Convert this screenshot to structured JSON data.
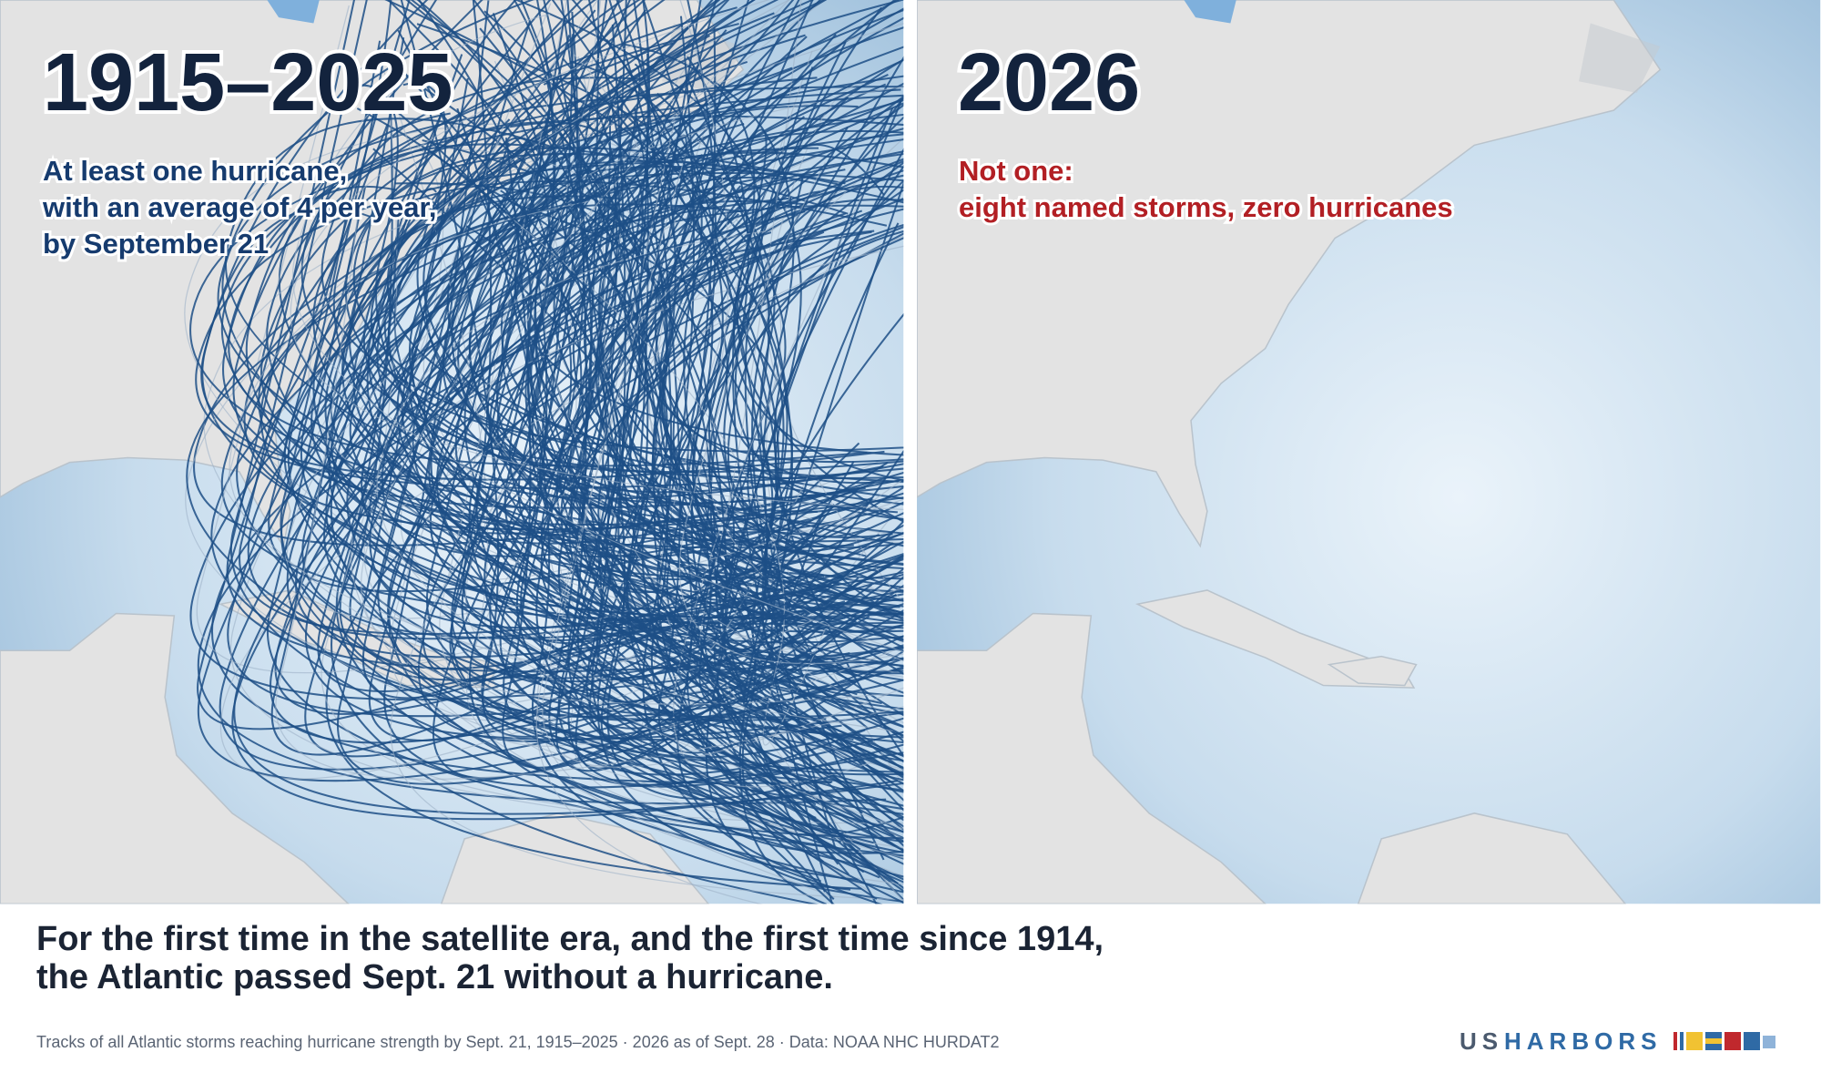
{
  "left_panel": {
    "title": "1915–2025",
    "subtitle_lines": [
      "At least one hurricane,",
      "with an average of 4 per year,",
      "by September 21"
    ]
  },
  "right_panel": {
    "title": "2026",
    "subtitle_lines": [
      "Not one:",
      "eight named storms, zero hurricanes"
    ]
  },
  "headline": {
    "lines": [
      "For the first time in the satellite era, and the first time since 1914,",
      "the Atlantic passed Sept. 21 without a hurricane."
    ]
  },
  "footer": {
    "caption": "Tracks of all Atlantic storms reaching hurricane strength by Sept. 21, 1915–2025 · 2026 as of Sept. 28 · Data: NOAA NHC HURDAT2"
  },
  "logo": {
    "us": "US",
    "harbors": "HARBORS"
  }
}
